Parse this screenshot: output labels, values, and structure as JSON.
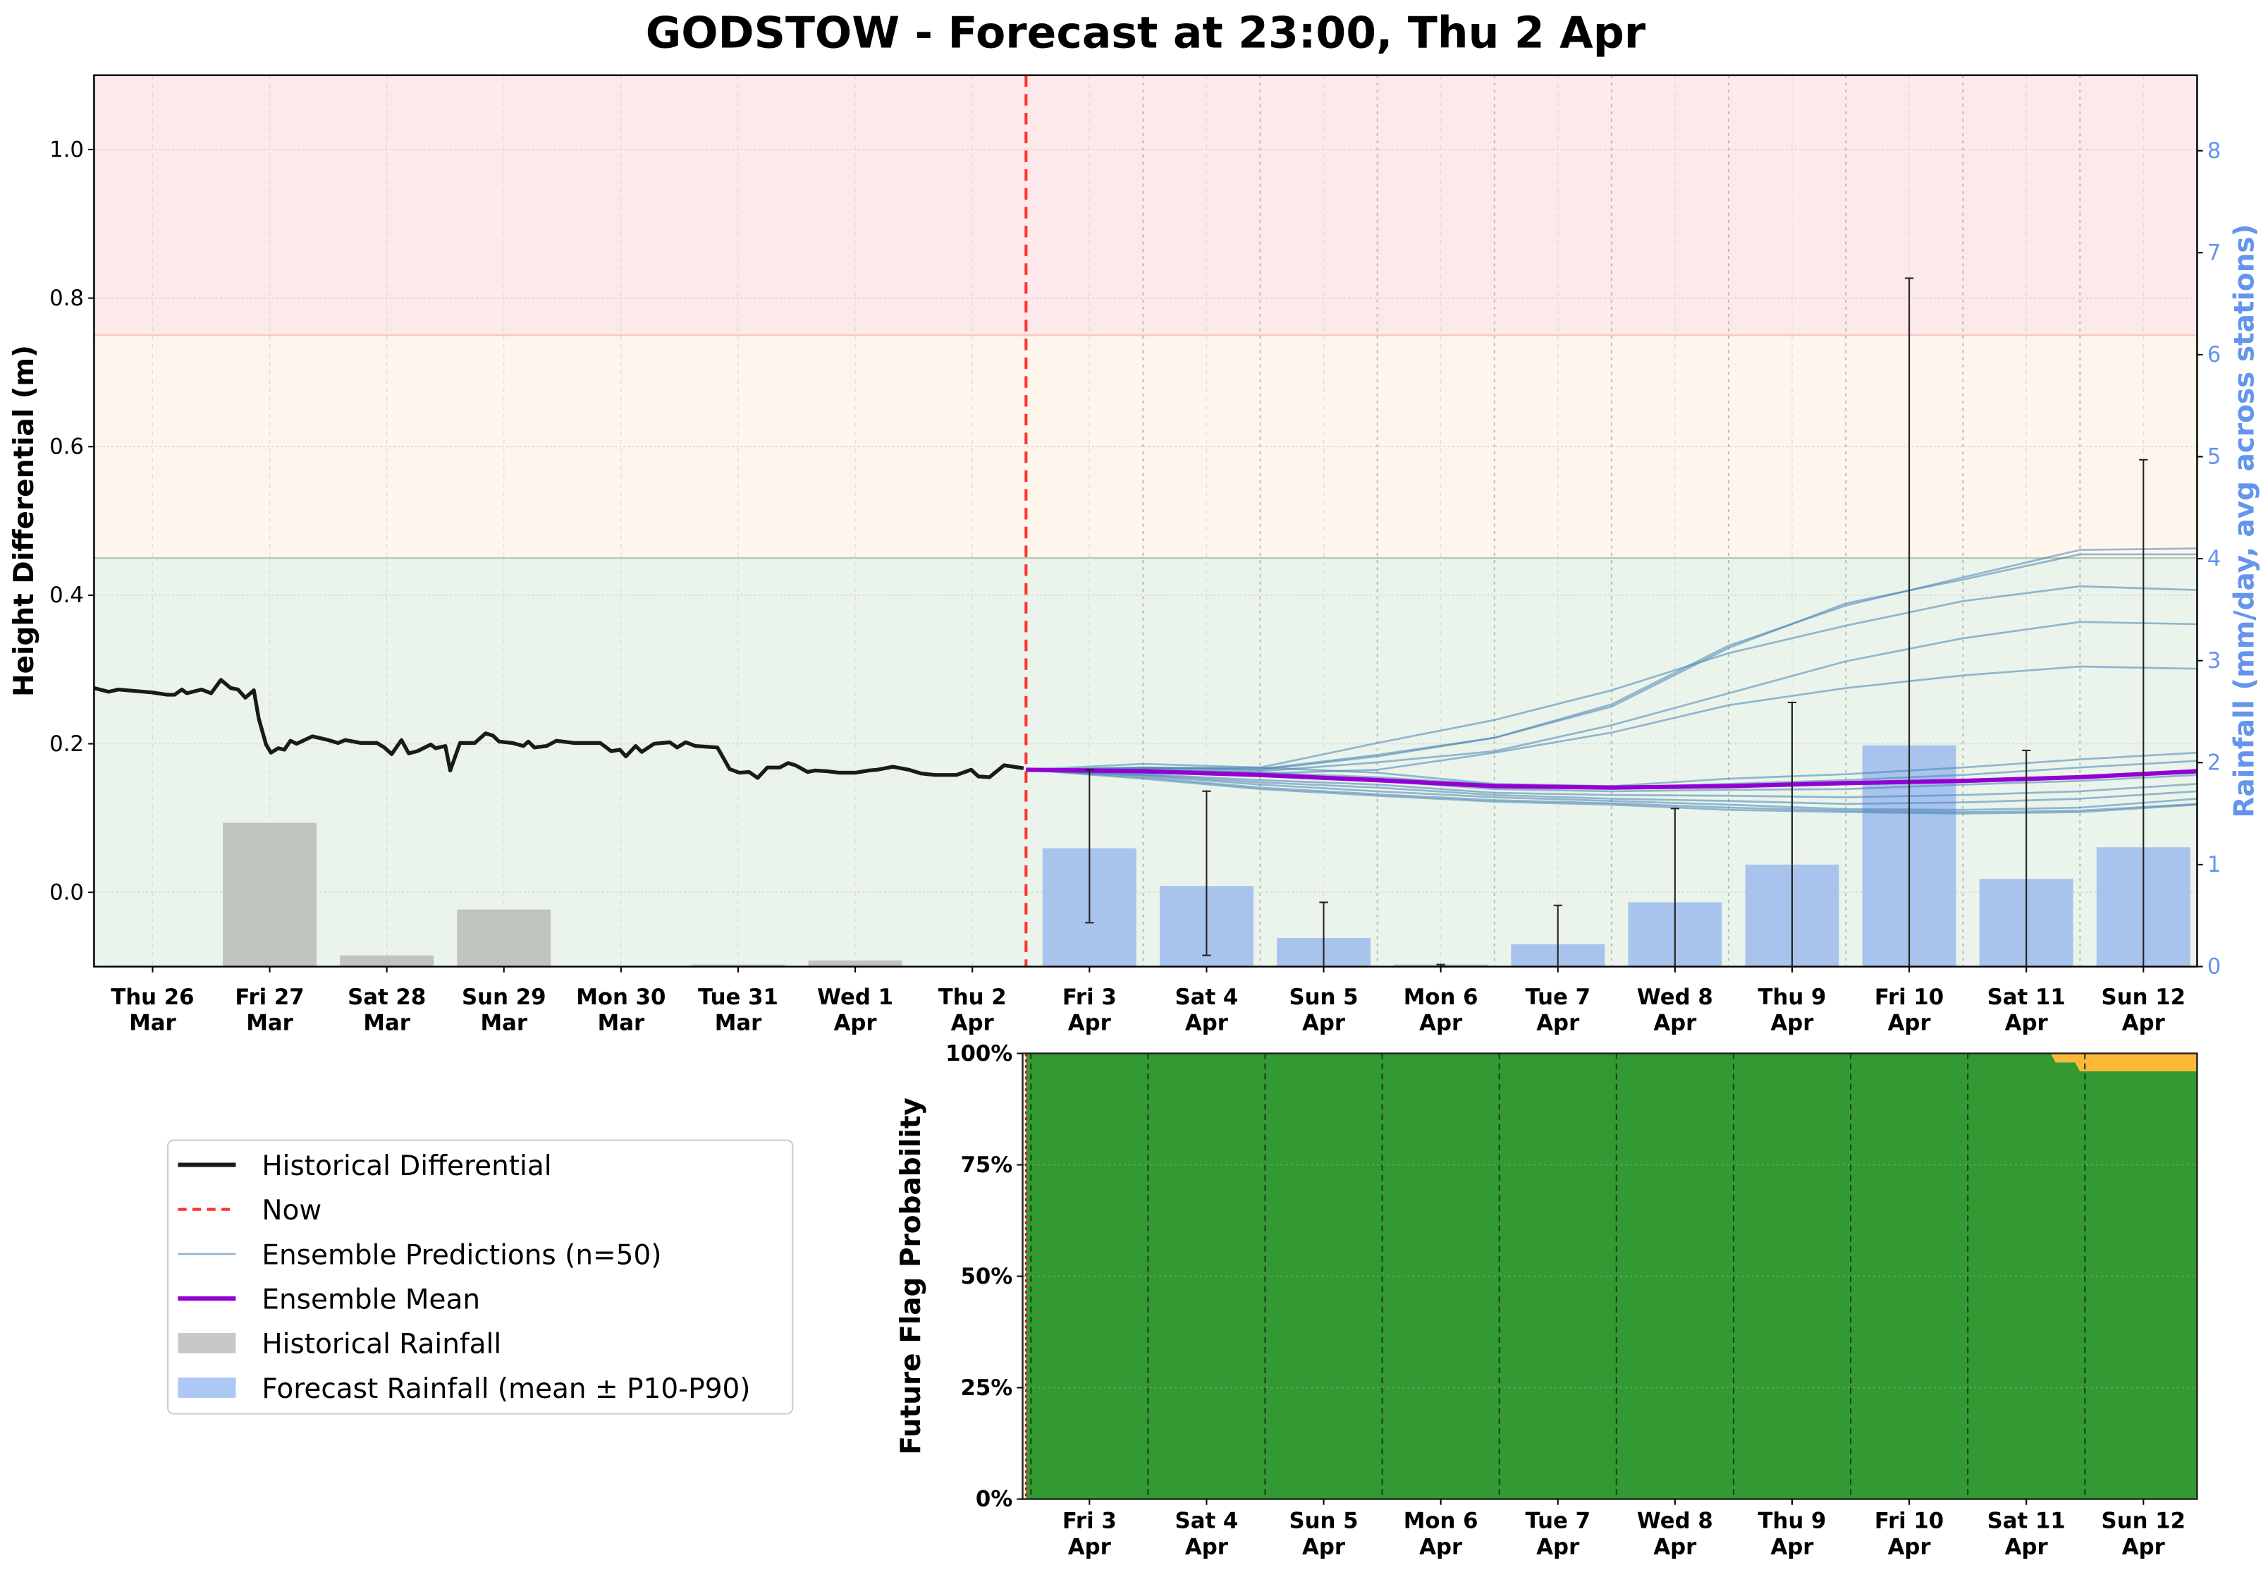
{
  "title": "GODSTOW - Forecast at 23:00, Thu 2 Apr",
  "colors": {
    "band_red": "#fde9ea",
    "band_amber": "#fef6ec",
    "band_green": "#eaf4ea",
    "historical": "#1a1a1a",
    "now": "#ff3333",
    "ensemble": "#4682b4",
    "mean": "#9400d3",
    "hist_rain": "#bfc4bd",
    "fc_rain": "#a8c3ec",
    "prob_green": "#339933",
    "prob_amber": "#fdb837",
    "rain_axis": "#6495ed"
  },
  "chart_data": [
    {
      "type": "line",
      "title": "GODSTOW - Forecast at 23:00, Thu 2 Apr",
      "ylabel": "Height Differential (m)",
      "y2label": "Rainfall (mm/day, avg across stations)",
      "ylim": [
        -0.1,
        1.1
      ],
      "y2lim": [
        0,
        8.74
      ],
      "xlim": [
        "03-26 00:00",
        "04-12 23:00"
      ],
      "yticks": [
        "0.0",
        "0.2",
        "0.4",
        "0.6",
        "0.8",
        "1.0"
      ],
      "y2ticks": [
        "0",
        "1",
        "2",
        "3",
        "4",
        "5",
        "6",
        "7",
        "8"
      ],
      "grid": true,
      "now": "04-02 23:00",
      "threshold_bands": [
        {
          "from": 0.75,
          "to": 1.1,
          "color": "#fde9ea"
        },
        {
          "from": 0.45,
          "to": 0.75,
          "color": "#fef6ec"
        },
        {
          "from": -0.1,
          "to": 0.45,
          "color": "#eaf4ea"
        }
      ],
      "x_ticks": [
        {
          "day": "Thu 26",
          "month": "Mar",
          "date": "03-26 12:00"
        },
        {
          "day": "Fri 27",
          "month": "Mar",
          "date": "03-27 12:00"
        },
        {
          "day": "Sat 28",
          "month": "Mar",
          "date": "03-28 12:00"
        },
        {
          "day": "Sun 29",
          "month": "Mar",
          "date": "03-29 12:00"
        },
        {
          "day": "Mon 30",
          "month": "Mar",
          "date": "03-30 12:00"
        },
        {
          "day": "Tue 31",
          "month": "Mar",
          "date": "03-31 12:00"
        },
        {
          "day": "Wed 1",
          "month": "Apr",
          "date": "04-01 12:00"
        },
        {
          "day": "Thu 2",
          "month": "Apr",
          "date": "04-02 12:00"
        },
        {
          "day": "Fri 3",
          "month": "Apr",
          "date": "04-03 12:00"
        },
        {
          "day": "Sat 4",
          "month": "Apr",
          "date": "04-04 12:00"
        },
        {
          "day": "Sun 5",
          "month": "Apr",
          "date": "04-05 12:00"
        },
        {
          "day": "Mon 6",
          "month": "Apr",
          "date": "04-06 12:00"
        },
        {
          "day": "Tue 7",
          "month": "Apr",
          "date": "04-07 12:00"
        },
        {
          "day": "Wed 8",
          "month": "Apr",
          "date": "04-08 12:00"
        },
        {
          "day": "Thu 9",
          "month": "Apr",
          "date": "04-09 12:00"
        },
        {
          "day": "Fri 10",
          "month": "Apr",
          "date": "04-10 12:00"
        },
        {
          "day": "Sat 11",
          "month": "Apr",
          "date": "04-11 12:00"
        },
        {
          "day": "Sun 12",
          "month": "Apr",
          "date": "04-12 12:00"
        }
      ],
      "historical_differential": [
        [
          "03-26 00:00",
          0.275
        ],
        [
          "03-26 03:00",
          0.27
        ],
        [
          "03-26 05:00",
          0.273
        ],
        [
          "03-26 12:00",
          0.269
        ],
        [
          "03-26 15:00",
          0.266
        ],
        [
          "03-26 16:30",
          0.266
        ],
        [
          "03-26 18:00",
          0.273
        ],
        [
          "03-26 19:00",
          0.268
        ],
        [
          "03-26 22:00",
          0.273
        ],
        [
          "03-27 00:00",
          0.268
        ],
        [
          "03-27 02:00",
          0.286
        ],
        [
          "03-27 04:00",
          0.275
        ],
        [
          "03-27 05:30",
          0.273
        ],
        [
          "03-27 07:00",
          0.262
        ],
        [
          "03-27 08:45",
          0.272
        ],
        [
          "03-27 09:45",
          0.234
        ],
        [
          "03-27 11:15",
          0.199
        ],
        [
          "03-27 12:15",
          0.188
        ],
        [
          "03-27 13:45",
          0.194
        ],
        [
          "03-27 15:00",
          0.192
        ],
        [
          "03-27 16:15",
          0.204
        ],
        [
          "03-27 17:30",
          0.2
        ],
        [
          "03-27 20:45",
          0.21
        ],
        [
          "03-28 00:00",
          0.205
        ],
        [
          "03-28 02:00",
          0.201
        ],
        [
          "03-28 03:30",
          0.205
        ],
        [
          "03-28 06:45",
          0.201
        ],
        [
          "03-28 10:00",
          0.201
        ],
        [
          "03-28 11:30",
          0.195
        ],
        [
          "03-28 13:00",
          0.186
        ],
        [
          "03-28 15:00",
          0.205
        ],
        [
          "03-28 16:30",
          0.187
        ],
        [
          "03-28 18:15",
          0.19
        ],
        [
          "03-28 21:00",
          0.199
        ],
        [
          "03-28 22:00",
          0.194
        ],
        [
          "03-29 00:00",
          0.197
        ],
        [
          "03-29 01:00",
          0.164
        ],
        [
          "03-29 03:00",
          0.201
        ],
        [
          "03-29 06:00",
          0.201
        ],
        [
          "03-29 08:15",
          0.214
        ],
        [
          "03-29 09:45",
          0.211
        ],
        [
          "03-29 11:00",
          0.203
        ],
        [
          "03-29 13:45",
          0.201
        ],
        [
          "03-29 16:00",
          0.197
        ],
        [
          "03-29 17:00",
          0.203
        ],
        [
          "03-29 18:15",
          0.195
        ],
        [
          "03-29 20:45",
          0.197
        ],
        [
          "03-29 22:45",
          0.204
        ],
        [
          "03-30 02:30",
          0.201
        ],
        [
          "03-30 07:45",
          0.201
        ],
        [
          "03-30 10:00",
          0.19
        ],
        [
          "03-30 11:45",
          0.192
        ],
        [
          "03-30 13:00",
          0.183
        ],
        [
          "03-30 15:00",
          0.197
        ],
        [
          "03-30 16:15",
          0.189
        ],
        [
          "03-30 18:45",
          0.2
        ],
        [
          "03-30 22:00",
          0.202
        ],
        [
          "03-30 23:30",
          0.195
        ],
        [
          "03-31 01:15",
          0.202
        ],
        [
          "03-31 03:15",
          0.197
        ],
        [
          "03-31 07:45",
          0.195
        ],
        [
          "03-31 10:15",
          0.166
        ],
        [
          "03-31 12:15",
          0.161
        ],
        [
          "03-31 14:15",
          0.162
        ],
        [
          "03-31 16:00",
          0.154
        ],
        [
          "03-31 18:00",
          0.168
        ],
        [
          "03-31 20:30",
          0.168
        ],
        [
          "03-31 22:15",
          0.174
        ],
        [
          "03-31 23:45",
          0.171
        ],
        [
          "04-01 02:15",
          0.162
        ],
        [
          "04-01 03:45",
          0.164
        ],
        [
          "04-01 06:15",
          0.163
        ],
        [
          "04-01 08:45",
          0.161
        ],
        [
          "04-01 12:00",
          0.161
        ],
        [
          "04-01 14:45",
          0.164
        ],
        [
          "04-01 16:30",
          0.165
        ],
        [
          "04-01 19:45",
          0.169
        ],
        [
          "04-01 23:00",
          0.165
        ],
        [
          "04-02 01:30",
          0.16
        ],
        [
          "04-02 04:15",
          0.158
        ],
        [
          "04-02 08:45",
          0.158
        ],
        [
          "04-02 11:45",
          0.165
        ],
        [
          "04-02 13:15",
          0.156
        ],
        [
          "04-02 15:30",
          0.155
        ],
        [
          "04-02 18:30",
          0.171
        ],
        [
          "04-02 22:30",
          0.167
        ]
      ],
      "ensemble_x": [
        "04-02 23:00",
        "04-03 23:00",
        "04-04 23:00",
        "04-05 23:00",
        "04-06 23:00",
        "04-07 23:00",
        "04-08 23:00",
        "04-09 23:00",
        "04-10 23:00",
        "04-11 23:00",
        "04-12 23:00"
      ],
      "ensemble_members": [
        [
          0.165,
          0.168,
          0.166,
          0.185,
          0.208,
          0.253,
          0.332,
          0.386,
          0.424,
          0.461,
          0.463
        ],
        [
          0.165,
          0.168,
          0.165,
          0.183,
          0.208,
          0.25,
          0.329,
          0.389,
          0.421,
          0.455,
          0.455
        ],
        [
          0.165,
          0.167,
          0.168,
          0.201,
          0.232,
          0.272,
          0.322,
          0.359,
          0.392,
          0.412,
          0.407
        ],
        [
          0.165,
          0.166,
          0.163,
          0.175,
          0.19,
          0.225,
          0.268,
          0.311,
          0.342,
          0.364,
          0.361
        ],
        [
          0.165,
          0.163,
          0.16,
          0.165,
          0.188,
          0.215,
          0.252,
          0.275,
          0.292,
          0.304,
          0.301
        ],
        [
          0.165,
          0.173,
          0.168,
          0.161,
          0.146,
          0.143,
          0.153,
          0.159,
          0.168,
          0.179,
          0.188
        ],
        [
          0.165,
          0.165,
          0.161,
          0.155,
          0.145,
          0.141,
          0.146,
          0.151,
          0.158,
          0.168,
          0.177
        ],
        [
          0.165,
          0.161,
          0.157,
          0.15,
          0.139,
          0.136,
          0.138,
          0.139,
          0.145,
          0.15,
          0.158
        ],
        [
          0.165,
          0.159,
          0.151,
          0.145,
          0.134,
          0.131,
          0.13,
          0.128,
          0.131,
          0.136,
          0.146
        ],
        [
          0.165,
          0.158,
          0.148,
          0.141,
          0.131,
          0.126,
          0.123,
          0.119,
          0.121,
          0.126,
          0.136
        ],
        [
          0.165,
          0.157,
          0.145,
          0.136,
          0.128,
          0.123,
          0.118,
          0.112,
          0.111,
          0.114,
          0.126
        ],
        [
          0.165,
          0.155,
          0.141,
          0.132,
          0.124,
          0.12,
          0.114,
          0.11,
          0.108,
          0.11,
          0.119
        ],
        [
          0.165,
          0.153,
          0.139,
          0.13,
          0.122,
          0.118,
          0.111,
          0.108,
          0.106,
          0.108,
          0.118
        ]
      ],
      "ensemble_mean": [
        0.165,
        0.163,
        0.158,
        0.151,
        0.143,
        0.141,
        0.143,
        0.147,
        0.15,
        0.155,
        0.163
      ],
      "historical_rainfall": {
        "dates": [
          "03-26 12:00",
          "03-27 12:00",
          "03-28 12:00",
          "03-29 12:00",
          "03-30 12:00",
          "03-31 12:00",
          "04-01 12:00",
          "04-02 12:00"
        ],
        "values": [
          0.01,
          1.41,
          0.11,
          0.56,
          0.0,
          0.02,
          0.06,
          0.0
        ]
      },
      "forecast_rainfall": {
        "dates": [
          "04-03 12:00",
          "04-04 12:00",
          "04-05 12:00",
          "04-06 12:00",
          "04-07 12:00",
          "04-08 12:00",
          "04-09 12:00",
          "04-10 12:00",
          "04-11 12:00",
          "04-12 12:00"
        ],
        "mean": [
          1.16,
          0.79,
          0.28,
          0.02,
          0.22,
          0.63,
          1.0,
          2.17,
          0.86,
          1.17
        ],
        "p10": [
          0.43,
          0.11,
          0.0,
          0.0,
          0.0,
          0.0,
          0.0,
          0.0,
          0.0,
          0.0
        ],
        "p90": [
          1.93,
          1.72,
          0.63,
          0.02,
          0.6,
          1.55,
          2.59,
          6.75,
          2.12,
          4.97
        ]
      },
      "legend": {
        "placement": "lower-left, outside",
        "entries": [
          "Historical Differential",
          "Now",
          "Ensemble Predictions (n=50)",
          "Ensemble Mean",
          "Historical Rainfall",
          "Forecast Rainfall (mean ± P10-P90)"
        ]
      }
    },
    {
      "type": "area",
      "ylabel": "Future Flag Probability",
      "ylim": [
        0,
        100
      ],
      "yticks": [
        "0%",
        "25%",
        "50%",
        "75%",
        "100%"
      ],
      "x_ticks": [
        {
          "day": "Fri 3",
          "month": "Apr",
          "date": "04-03 12:00"
        },
        {
          "day": "Sat 4",
          "month": "Apr",
          "date": "04-04 12:00"
        },
        {
          "day": "Sun 5",
          "month": "Apr",
          "date": "04-05 12:00"
        },
        {
          "day": "Mon 6",
          "month": "Apr",
          "date": "04-06 12:00"
        },
        {
          "day": "Tue 7",
          "month": "Apr",
          "date": "04-07 12:00"
        },
        {
          "day": "Wed 8",
          "month": "Apr",
          "date": "04-08 12:00"
        },
        {
          "day": "Thu 9",
          "month": "Apr",
          "date": "04-09 12:00"
        },
        {
          "day": "Fri 10",
          "month": "Apr",
          "date": "04-10 12:00"
        },
        {
          "day": "Sat 11",
          "month": "Apr",
          "date": "04-11 12:00"
        },
        {
          "day": "Sun 12",
          "month": "Apr",
          "date": "04-12 12:00"
        }
      ],
      "x": [
        "04-02 23:00",
        "04-11 17:00",
        "04-11 18:00",
        "04-11 22:00",
        "04-11 23:00",
        "04-12 23:00"
      ],
      "series": [
        {
          "color": "#339933",
          "values": [
            100,
            100,
            98,
            98,
            96,
            96
          ]
        },
        {
          "color": "#fdb837",
          "values": [
            0,
            0,
            2,
            2,
            4,
            4
          ]
        }
      ]
    }
  ]
}
